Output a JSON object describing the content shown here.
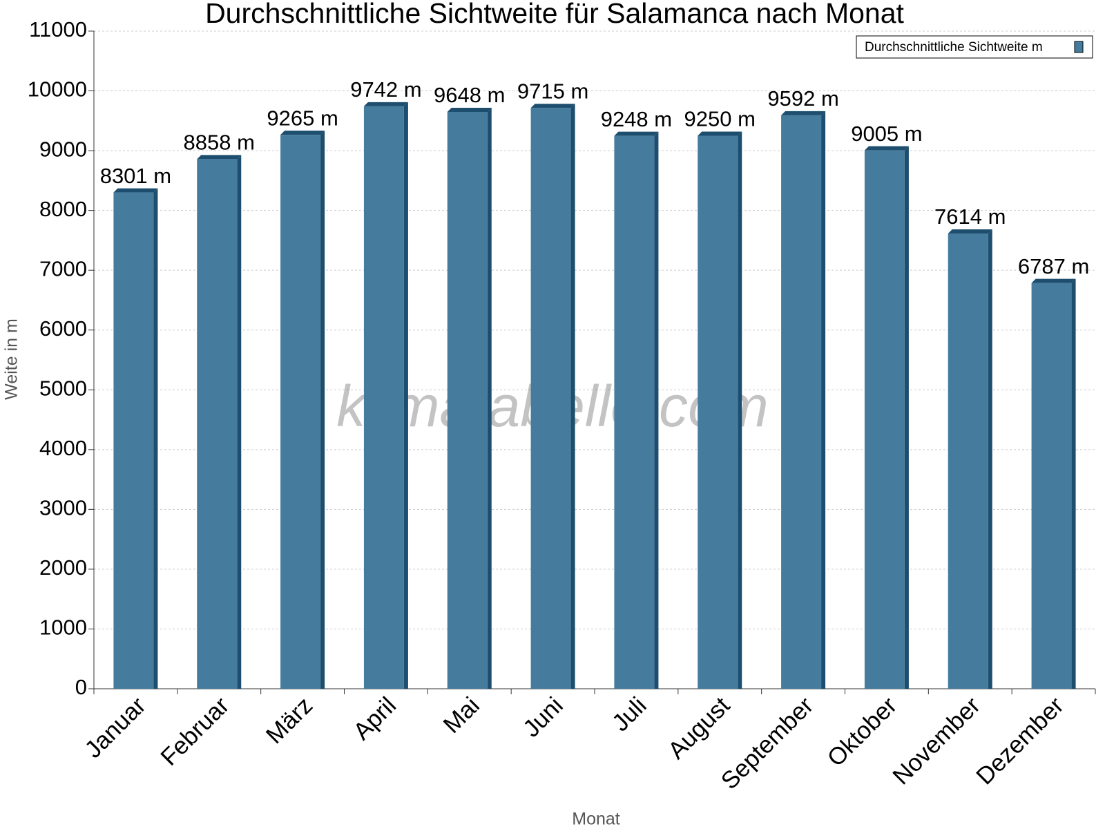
{
  "chart_data": {
    "type": "bar",
    "title": "Durchschnittliche Sichtweite für Salamanca nach Monat",
    "x_label": "Monat",
    "y_label": "Weite in m",
    "watermark": "klimatabelle.com",
    "categories": [
      "Januar",
      "Februar",
      "März",
      "April",
      "Mai",
      "Juni",
      "Juli",
      "August",
      "September",
      "Oktober",
      "November",
      "Dezember"
    ],
    "series": [
      {
        "name": "Durchschnittliche Sichtweite m",
        "color": "#457b9d",
        "values": [
          8301,
          8858,
          9265,
          9742,
          9648,
          9715,
          9248,
          9250,
          9592,
          9005,
          7614,
          6787
        ],
        "value_labels": [
          "8301 m",
          "8858 m",
          "9265 m",
          "9742 m",
          "9648 m",
          "9715 m",
          "9248 m",
          "9250 m",
          "9592 m",
          "9005 m",
          "7614 m",
          "6787 m"
        ]
      }
    ],
    "ylim": [
      0,
      11000
    ],
    "yticks": [
      0,
      1000,
      2000,
      3000,
      4000,
      5000,
      6000,
      7000,
      8000,
      9000,
      10000,
      11000
    ],
    "grid": true,
    "legend": "top-right"
  }
}
